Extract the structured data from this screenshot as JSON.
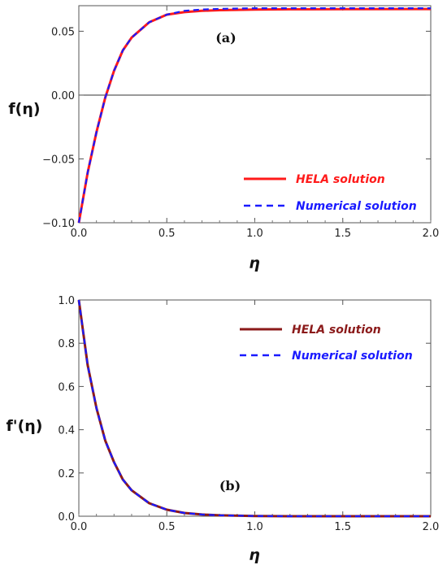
{
  "chart_data": [
    {
      "type": "line",
      "panel_tag": "(a)",
      "xlabel": "η",
      "ylabel": "f(η)",
      "xlim": [
        0,
        2
      ],
      "ylim": [
        -0.1,
        0.07
      ],
      "x_ticks": [
        "0.0",
        "0.5",
        "1.0",
        "1.5",
        "2.0"
      ],
      "x_tick_values": [
        0,
        0.5,
        1,
        1.5,
        2
      ],
      "y_ticks": [
        "0.05",
        "0.00",
        "−0.05",
        "−0.10"
      ],
      "y_tick_values": [
        0.05,
        0,
        -0.05,
        -0.1
      ],
      "zero_line": true,
      "legend_position": "bottom-right",
      "x": [
        0,
        0.05,
        0.1,
        0.15,
        0.2,
        0.25,
        0.3,
        0.4,
        0.5,
        0.6,
        0.7,
        0.8,
        1.0,
        1.2,
        1.5,
        2.0
      ],
      "series": [
        {
          "name": "HELA solution",
          "color": "#ff1a1a",
          "style": "solid",
          "values": [
            -0.1,
            -0.061,
            -0.029,
            -0.002,
            0.019,
            0.035,
            0.045,
            0.057,
            0.063,
            0.065,
            0.066,
            0.0665,
            0.067,
            0.0672,
            0.0673,
            0.0674
          ]
        },
        {
          "name": "Numerical solution",
          "color": "#1a1aff",
          "style": "dashed",
          "values": [
            -0.1,
            -0.061,
            -0.029,
            -0.002,
            0.019,
            0.035,
            0.045,
            0.057,
            0.063,
            0.066,
            0.067,
            0.0675,
            0.068,
            0.068,
            0.068,
            0.068
          ]
        }
      ]
    },
    {
      "type": "line",
      "panel_tag": "(b)",
      "xlabel": "η",
      "ylabel": "f'(η)",
      "xlim": [
        0,
        2
      ],
      "ylim": [
        0,
        1
      ],
      "x_ticks": [
        "0.0",
        "0.5",
        "1.0",
        "1.5",
        "2.0"
      ],
      "x_tick_values": [
        0,
        0.5,
        1,
        1.5,
        2
      ],
      "y_ticks": [
        "1.0",
        "0.8",
        "0.6",
        "0.4",
        "0.2",
        "0.0"
      ],
      "y_tick_values": [
        1,
        0.8,
        0.6,
        0.4,
        0.2,
        0
      ],
      "zero_line": false,
      "legend_position": "top-right",
      "x": [
        0,
        0.05,
        0.1,
        0.15,
        0.2,
        0.25,
        0.3,
        0.4,
        0.5,
        0.6,
        0.7,
        0.8,
        1.0,
        1.2,
        1.5,
        2.0
      ],
      "series": [
        {
          "name": "HELA solution",
          "color": "#8b1a1a",
          "style": "solid",
          "values": [
            1.0,
            0.7,
            0.5,
            0.35,
            0.25,
            0.17,
            0.12,
            0.06,
            0.03,
            0.015,
            0.008,
            0.004,
            0.001,
            0.0,
            0.0,
            0.0
          ]
        },
        {
          "name": "Numerical solution",
          "color": "#1a1aff",
          "style": "dashed",
          "values": [
            1.0,
            0.7,
            0.5,
            0.35,
            0.25,
            0.17,
            0.12,
            0.06,
            0.03,
            0.015,
            0.008,
            0.004,
            0.001,
            0.0,
            0.0,
            0.0
          ]
        }
      ]
    }
  ]
}
